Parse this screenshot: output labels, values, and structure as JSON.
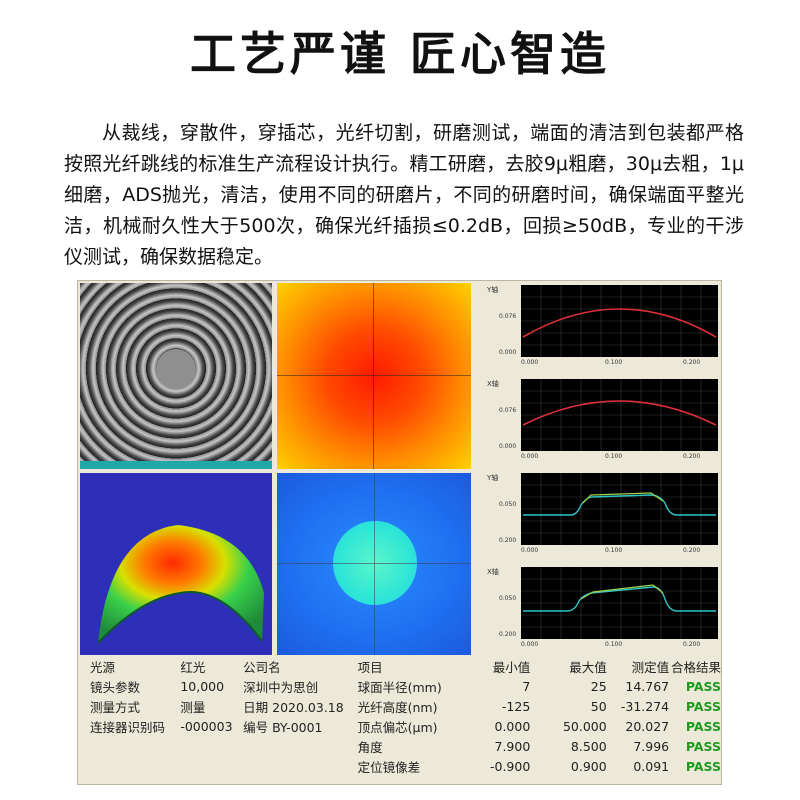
{
  "title": "工艺严谨 匠心智造",
  "description": "从裁线，穿散件，穿插芯，光纤切割，研磨测试，端面的清洁到包装都严格按照光纤跳线的标准生产流程设计执行。精工研磨，去胶9μ粗磨，30μ去粗，1μ细磨，ADS抛光，清洁，使用不同的研磨片，不同的研磨时间，确保端面平整光洁，机械耐久性大于500次，确保光纤插损≤0.2dB，回损≥50dB，专业的干涉仪测试，确保数据稳定。",
  "graphs": [
    {
      "axis": "Y轴",
      "yticks": [
        "0.076",
        "0.000"
      ],
      "xticks": [
        "0.000",
        "0.100",
        "0.200"
      ],
      "curve": "arc",
      "color": "#e0303a"
    },
    {
      "axis": "X轴",
      "yticks": [
        "0.076",
        "0.000"
      ],
      "xticks": [
        "0.000",
        "0.100",
        "0.200"
      ],
      "curve": "arc",
      "color": "#e0303a"
    },
    {
      "axis": "Y轴",
      "yticks": [
        "0.050",
        "0.200"
      ],
      "xticks": [
        "0.000",
        "0.100",
        "0.200"
      ],
      "curve": "plateau",
      "color": "#9fd24a"
    },
    {
      "axis": "X轴",
      "yticks": [
        "0.050",
        "0.200"
      ],
      "xticks": [
        "0.000",
        "0.100",
        "0.200"
      ],
      "curve": "step",
      "color": "#9fd24a"
    }
  ],
  "info_labels": [
    "光源",
    "镜头参数",
    "测量方式",
    "连接器识别码"
  ],
  "info_values": [
    "红光",
    "10,000",
    "测量",
    "-000003"
  ],
  "company": {
    "label": "公司名",
    "name": "深圳中为思创",
    "date_label": "日期",
    "date": "2020.03.18",
    "id_label": "编号",
    "id": "BY-0001"
  },
  "table_headers": [
    "项目",
    "最小值",
    "最大值",
    "测定值",
    "合格结果"
  ],
  "rows": [
    {
      "item": "球面半径(mm)",
      "min": "7",
      "max": "25",
      "measured": "14.767",
      "result": "PASS"
    },
    {
      "item": "光纤高度(nm)",
      "min": "-125",
      "max": "50",
      "measured": "-31.274",
      "result": "PASS"
    },
    {
      "item": "顶点偏芯(μm)",
      "min": "0.000",
      "max": "50.000",
      "measured": "20.027",
      "result": "PASS"
    },
    {
      "item": "角度",
      "min": "7.900",
      "max": "8.500",
      "measured": "7.996",
      "result": "PASS"
    },
    {
      "item": "定位镜像差",
      "min": "-0.900",
      "max": "0.900",
      "measured": "0.091",
      "result": "PASS"
    }
  ]
}
